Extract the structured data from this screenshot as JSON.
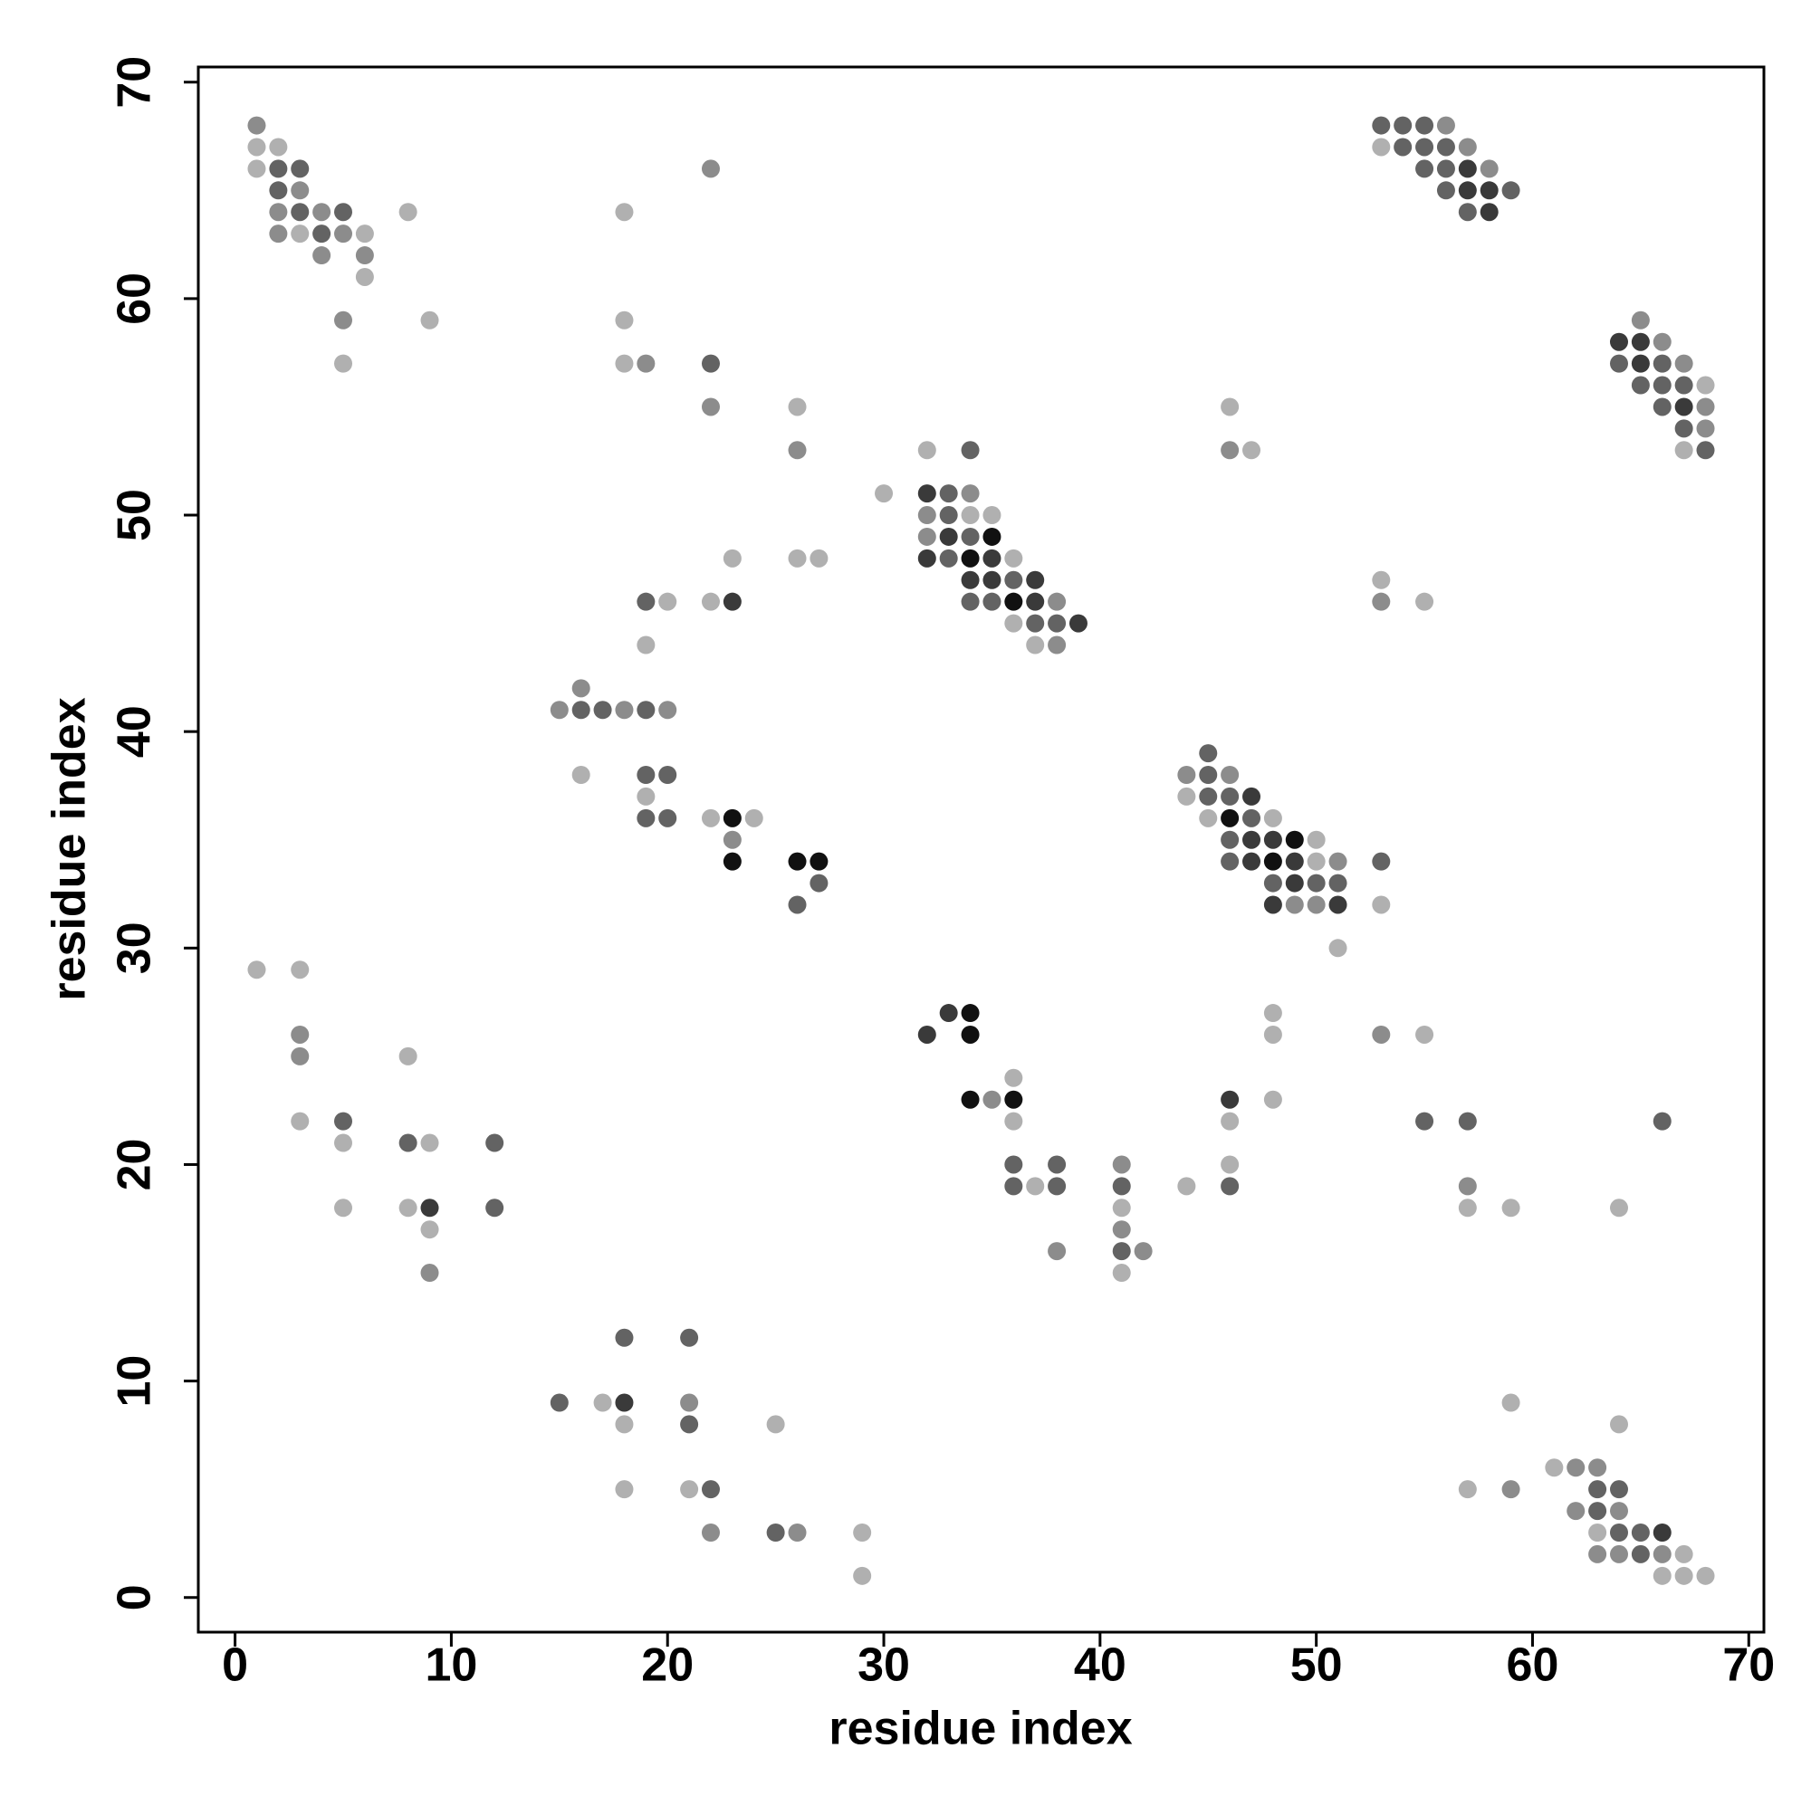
{
  "chart_data": {
    "type": "scatter",
    "xlabel": "residue index",
    "ylabel": "residue index",
    "xlim": [
      -1.7,
      70.7
    ],
    "ylim": [
      -1.6,
      70.7
    ],
    "xticks": [
      0,
      10,
      20,
      30,
      40,
      50,
      60,
      70
    ],
    "yticks": [
      0,
      10,
      20,
      30,
      40,
      50,
      60,
      70
    ],
    "series": [
      {
        "color": "#b0b0b0",
        "x": [
          1,
          2,
          53,
          1,
          8,
          18,
          3,
          6,
          6,
          9,
          18,
          5,
          18,
          68,
          26,
          46,
          32,
          47,
          67,
          30,
          34,
          35,
          23,
          26,
          27,
          36,
          53,
          20,
          22,
          55,
          36,
          19,
          37,
          16,
          19,
          44,
          22,
          24,
          45,
          48,
          50,
          50,
          53,
          51,
          1,
          3,
          48,
          48,
          55,
          8,
          36,
          48,
          3,
          36,
          46,
          5,
          9,
          46,
          37,
          44,
          5,
          8,
          41,
          57,
          59,
          64,
          9,
          41,
          17,
          59,
          18,
          25,
          64,
          61,
          18,
          21,
          57,
          29,
          63,
          67,
          29,
          66,
          67,
          68
        ],
        "y": [
          67,
          67,
          67,
          66,
          64,
          64,
          63,
          63,
          61,
          59,
          59,
          57,
          57,
          56,
          55,
          55,
          53,
          53,
          53,
          51,
          50,
          50,
          48,
          48,
          48,
          48,
          47,
          46,
          46,
          46,
          45,
          44,
          44,
          38,
          37,
          37,
          36,
          36,
          36,
          36,
          35,
          34,
          32,
          30,
          29,
          29,
          27,
          26,
          26,
          25,
          24,
          23,
          22,
          22,
          22,
          21,
          21,
          20,
          19,
          19,
          18,
          18,
          18,
          18,
          18,
          18,
          17,
          15,
          9,
          9,
          8,
          8,
          8,
          6,
          5,
          5,
          5,
          3,
          3,
          2,
          1,
          1,
          1,
          1
        ]
      },
      {
        "color": "#8c8c8c",
        "x": [
          1,
          56,
          57,
          22,
          58,
          3,
          2,
          4,
          2,
          5,
          4,
          6,
          5,
          65,
          66,
          19,
          67,
          22,
          68,
          68,
          26,
          46,
          34,
          32,
          32,
          38,
          53,
          38,
          16,
          15,
          18,
          20,
          44,
          46,
          23,
          51,
          49,
          50,
          3,
          53,
          3,
          35,
          41,
          57,
          41,
          38,
          42,
          9,
          21,
          62,
          63,
          59,
          62,
          64,
          22,
          26,
          63,
          64,
          66
        ],
        "y": [
          68,
          68,
          67,
          66,
          66,
          65,
          64,
          64,
          63,
          63,
          62,
          62,
          59,
          59,
          58,
          57,
          57,
          55,
          55,
          54,
          53,
          53,
          51,
          50,
          49,
          46,
          46,
          44,
          42,
          41,
          41,
          41,
          38,
          38,
          35,
          34,
          32,
          32,
          26,
          26,
          25,
          23,
          20,
          19,
          17,
          16,
          16,
          15,
          9,
          6,
          6,
          5,
          4,
          4,
          3,
          3,
          2,
          2,
          2
        ]
      },
      {
        "color": "#636363",
        "x": [
          53,
          54,
          55,
          54,
          55,
          56,
          2,
          3,
          55,
          56,
          2,
          56,
          59,
          3,
          5,
          57,
          4,
          22,
          64,
          66,
          65,
          66,
          67,
          66,
          67,
          34,
          68,
          33,
          33,
          34,
          33,
          36,
          19,
          34,
          35,
          37,
          38,
          16,
          17,
          19,
          45,
          19,
          20,
          45,
          45,
          46,
          19,
          20,
          47,
          46,
          46,
          53,
          27,
          48,
          50,
          51,
          26,
          5,
          55,
          57,
          66,
          8,
          12,
          36,
          38,
          36,
          38,
          41,
          46,
          12,
          41,
          18,
          21,
          15,
          21,
          22,
          63,
          64,
          63,
          25,
          64,
          65,
          65
        ],
        "y": [
          68,
          68,
          68,
          67,
          67,
          67,
          66,
          66,
          66,
          66,
          65,
          65,
          65,
          64,
          64,
          64,
          63,
          57,
          57,
          57,
          56,
          56,
          56,
          55,
          54,
          53,
          53,
          51,
          50,
          49,
          48,
          47,
          46,
          46,
          46,
          45,
          45,
          41,
          41,
          41,
          39,
          38,
          38,
          38,
          37,
          37,
          36,
          36,
          36,
          35,
          34,
          34,
          33,
          33,
          33,
          33,
          32,
          22,
          22,
          22,
          22,
          21,
          21,
          20,
          20,
          19,
          19,
          19,
          19,
          18,
          16,
          12,
          12,
          9,
          8,
          5,
          5,
          5,
          4,
          3,
          3,
          3,
          2
        ]
      },
      {
        "color": "#3a3a3a",
        "x": [
          57,
          57,
          58,
          58,
          64,
          65,
          65,
          67,
          32,
          32,
          33,
          35,
          34,
          35,
          37,
          23,
          37,
          39,
          47,
          47,
          48,
          47,
          49,
          49,
          48,
          51,
          33,
          32,
          46,
          9,
          18,
          66
        ],
        "y": [
          66,
          65,
          65,
          64,
          58,
          58,
          57,
          55,
          51,
          48,
          49,
          48,
          47,
          47,
          47,
          46,
          46,
          45,
          37,
          35,
          35,
          34,
          34,
          33,
          32,
          32,
          27,
          26,
          23,
          18,
          9,
          3
        ]
      },
      {
        "color": "#111111",
        "x": [
          35,
          34,
          36,
          23,
          46,
          49,
          23,
          26,
          27,
          48,
          34,
          34,
          34,
          36
        ],
        "y": [
          49,
          48,
          46,
          36,
          36,
          35,
          34,
          34,
          34,
          34,
          27,
          26,
          23,
          23
        ]
      }
    ]
  }
}
